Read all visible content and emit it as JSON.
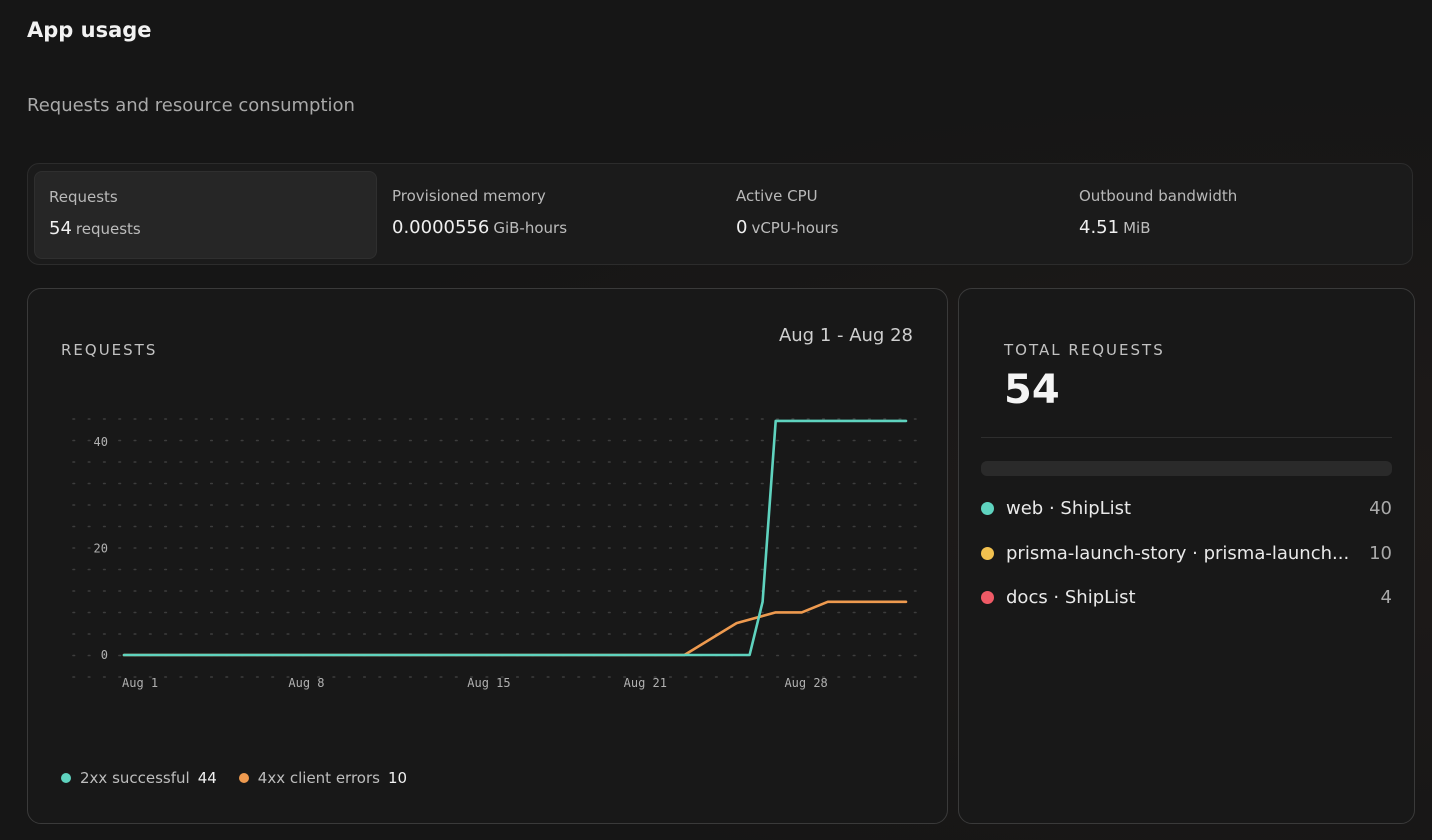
{
  "page": {
    "title": "App usage",
    "subtitle": "Requests and resource consumption"
  },
  "metrics": [
    {
      "label": "Requests",
      "value": "54",
      "unit": "requests",
      "active": true
    },
    {
      "label": "Provisioned memory",
      "value": "0.0000556",
      "unit": "GiB-hours",
      "active": false
    },
    {
      "label": "Active CPU",
      "value": "0",
      "unit": "vCPU-hours",
      "active": false
    },
    {
      "label": "Outbound bandwidth",
      "value": "4.51",
      "unit": "MiB",
      "active": false
    }
  ],
  "chart_panel": {
    "heading": "REQUESTS",
    "date_range": "Aug 1 - Aug 28",
    "legend": [
      {
        "label": "2xx successful",
        "count": "44",
        "color": "#5fd3bf"
      },
      {
        "label": "4xx client errors",
        "count": "10",
        "color": "#ee9a4f"
      }
    ]
  },
  "chart_data": {
    "type": "line",
    "x_tick_labels": [
      "Aug 1",
      "Aug 8",
      "Aug 15",
      "Aug 21",
      "Aug 28"
    ],
    "x_tick_days": [
      1,
      8,
      15,
      21,
      28
    ],
    "y_tick_labels": [
      "0",
      "20",
      "40"
    ],
    "ylim": [
      0,
      50
    ],
    "xlim": [
      1,
      31
    ],
    "grid": "dotted",
    "series": [
      {
        "name": "2xx successful",
        "color": "#5fd3bf",
        "points": [
          [
            1,
            0
          ],
          [
            25,
            0
          ],
          [
            25.5,
            10
          ],
          [
            26,
            44
          ],
          [
            31,
            44
          ]
        ]
      },
      {
        "name": "4xx client errors",
        "color": "#ee9a4f",
        "points": [
          [
            1,
            0
          ],
          [
            22.5,
            0
          ],
          [
            24.5,
            6
          ],
          [
            26,
            8
          ],
          [
            27,
            8
          ],
          [
            28,
            10
          ],
          [
            31,
            10
          ]
        ]
      }
    ]
  },
  "side_panel": {
    "heading": "TOTAL REQUESTS",
    "total": "54",
    "apps": [
      {
        "name": "web · ShipList",
        "count": "40",
        "color": "#5fd3bf"
      },
      {
        "name": "prisma-launch-story · prisma-launch...",
        "count": "10",
        "color": "#f2c14f"
      },
      {
        "name": "docs · ShipList",
        "count": "4",
        "color": "#ef5a66"
      }
    ]
  }
}
